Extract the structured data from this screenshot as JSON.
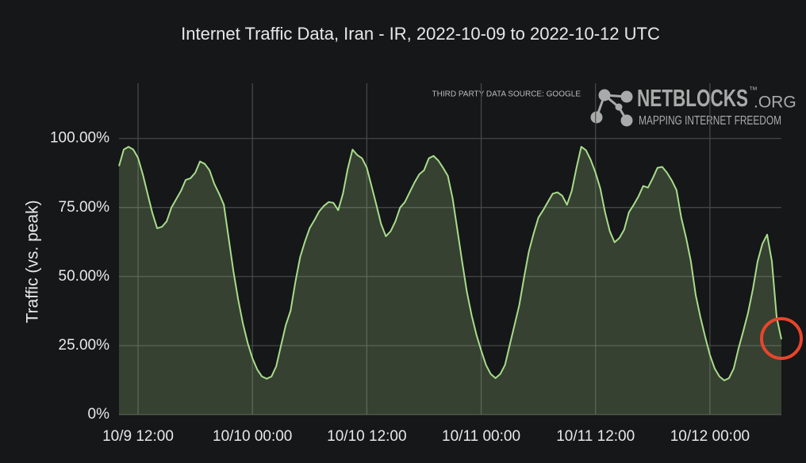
{
  "chart_data": {
    "type": "area",
    "title": "Internet Traffic Data, Iran - IR, 2022-10-09 to 2022-10-12 UTC",
    "ylabel": "Traffic (vs. peak)",
    "source_note": "THIRD PARTY DATA SOURCE: GOOGLE",
    "brand": {
      "name": "NETBLOCKS",
      "tm": "™",
      "suffix": ".ORG",
      "tagline": "MAPPING INTERNET FREEDOM"
    },
    "color": "#a8dc8c",
    "grid": true,
    "xlim": [
      10,
      79.5
    ],
    "xticks": [
      {
        "value": 12,
        "label": "10/9 12:00"
      },
      {
        "value": 24,
        "label": "10/10 00:00"
      },
      {
        "value": 36,
        "label": "10/10 12:00"
      },
      {
        "value": 48,
        "label": "10/11 00:00"
      },
      {
        "value": 60,
        "label": "10/11 12:00"
      },
      {
        "value": 72,
        "label": "10/12 00:00"
      }
    ],
    "ylim": [
      0,
      120
    ],
    "yticks": [
      {
        "value": 0,
        "label": "0%"
      },
      {
        "value": 25,
        "label": "25.00%"
      },
      {
        "value": 50,
        "label": "50.00%"
      },
      {
        "value": 75,
        "label": "75.00%"
      },
      {
        "value": 100,
        "label": "100.00%"
      }
    ],
    "x": [
      10,
      10.5,
      11,
      11.5,
      12,
      12.5,
      13,
      13.5,
      14,
      14.5,
      15,
      15.5,
      16,
      16.5,
      17,
      17.5,
      18,
      18.5,
      19,
      19.5,
      20,
      20.5,
      21,
      21.5,
      22,
      22.5,
      23,
      23.5,
      24,
      24.5,
      25,
      25.5,
      26,
      26.5,
      27,
      27.5,
      28,
      28.5,
      29,
      29.5,
      30,
      30.5,
      31,
      31.5,
      32,
      32.5,
      33,
      33.5,
      34,
      34.5,
      35,
      35.5,
      36,
      36.5,
      37,
      37.5,
      38,
      38.5,
      39,
      39.5,
      40,
      40.5,
      41,
      41.5,
      42,
      42.5,
      43,
      43.5,
      44,
      44.5,
      45,
      45.5,
      46,
      46.5,
      47,
      47.5,
      48,
      48.5,
      49,
      49.5,
      50,
      50.5,
      51,
      51.5,
      52,
      52.5,
      53,
      53.5,
      54,
      54.5,
      55,
      55.5,
      56,
      56.5,
      57,
      57.5,
      58,
      58.5,
      59,
      59.5,
      60,
      60.5,
      61,
      61.5,
      62,
      62.5,
      63,
      63.5,
      64,
      64.5,
      65,
      65.5,
      66,
      66.5,
      67,
      67.5,
      68,
      68.5,
      69,
      69.5,
      70,
      70.5,
      71,
      71.5,
      72,
      72.5,
      73,
      73.5,
      74,
      74.5,
      75,
      75.5,
      76,
      76.5,
      77,
      77.5,
      78,
      78.5,
      79,
      79.5
    ],
    "values": [
      90,
      96,
      97,
      96,
      93,
      87,
      80,
      73,
      67.5,
      68,
      70,
      75,
      78,
      81,
      85,
      85.6,
      87.6,
      91.7,
      90.8,
      88.5,
      83.6,
      80,
      76,
      64,
      52,
      41.7,
      33,
      26,
      20.4,
      16.4,
      13.8,
      13,
      13.8,
      17.5,
      25,
      32.5,
      37.6,
      48,
      57,
      62.6,
      67.5,
      70.4,
      73.6,
      75.6,
      77,
      76.7,
      74,
      80,
      89,
      96,
      94,
      92.8,
      89.4,
      82.7,
      76,
      69,
      64.6,
      66.4,
      70,
      75,
      77,
      80.5,
      84,
      87,
      88.5,
      92.8,
      93.7,
      92,
      89.4,
      86.5,
      78.4,
      67,
      55.5,
      44.5,
      36,
      29,
      23.3,
      18,
      14.7,
      13.2,
      14.7,
      18,
      25.3,
      32.5,
      39.7,
      49.7,
      59,
      65.5,
      71.3,
      74,
      77,
      80,
      80.5,
      79.3,
      76,
      81,
      89.4,
      97,
      95.7,
      92.2,
      87.6,
      81.9,
      73.3,
      66.4,
      62.4,
      64,
      67,
      73.3,
      76,
      79,
      82.8,
      82.2,
      85.6,
      89.4,
      89.7,
      87.6,
      84.8,
      81.3,
      71.3,
      64,
      55.5,
      43.4,
      35.3,
      28.2,
      21.6,
      16.7,
      13.8,
      12.4,
      13.2,
      16.7,
      23.9,
      30.2,
      36.8,
      45.4,
      55.5,
      61.8,
      65.2,
      55.5,
      35.3,
      27.3
    ]
  }
}
